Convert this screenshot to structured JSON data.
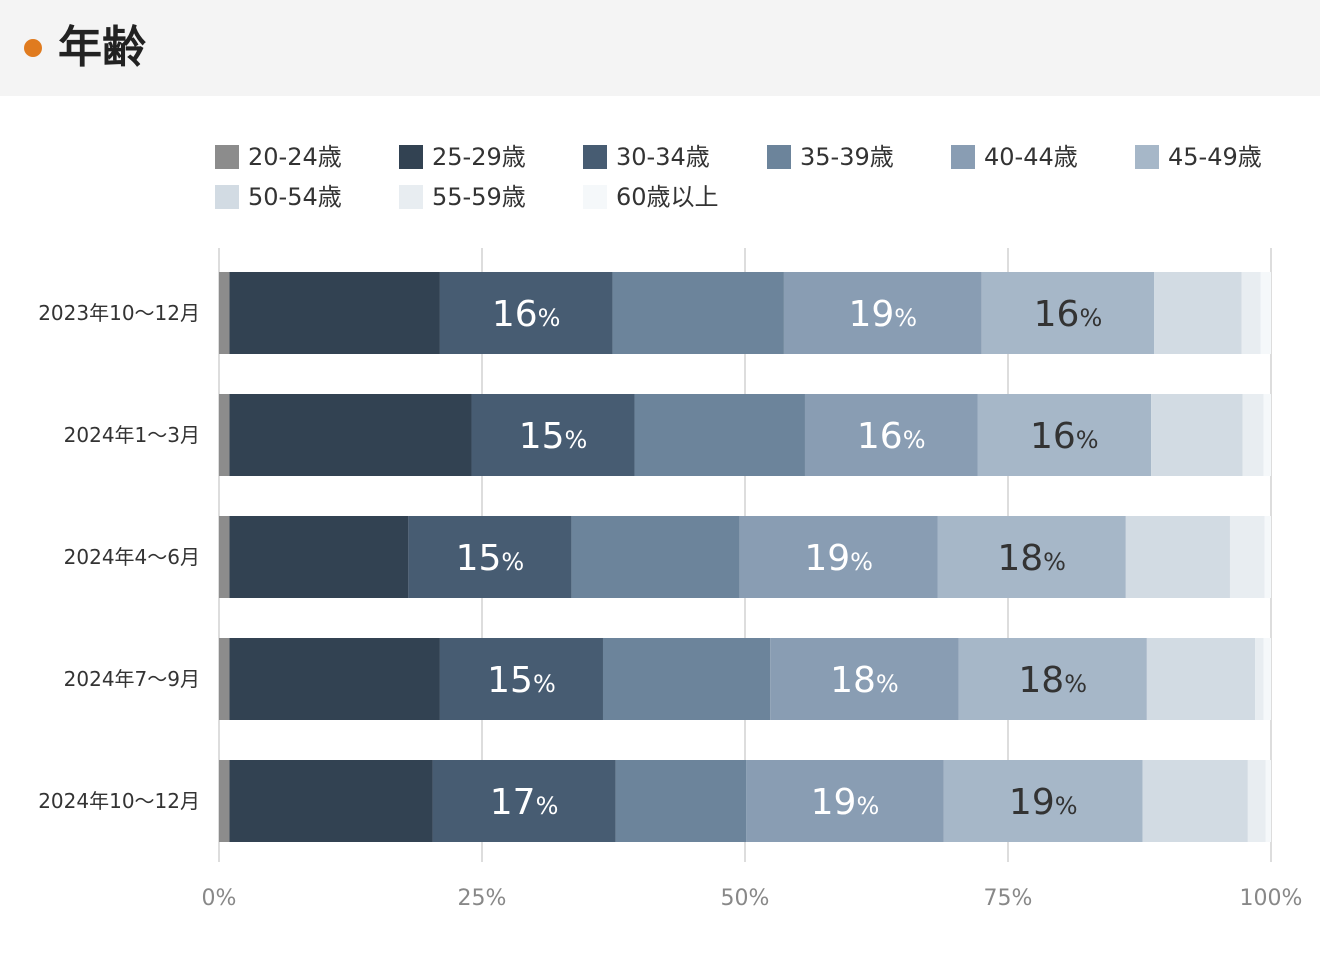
{
  "header": {
    "title": "年齢",
    "accent": "#e07b1f"
  },
  "chart_data": {
    "type": "bar",
    "orientation": "horizontal",
    "stacked": true,
    "xlim": [
      0,
      100
    ],
    "ticks": [
      "0%",
      "25%",
      "50%",
      "75%",
      "100%"
    ],
    "tick_values": [
      0,
      25,
      50,
      75,
      100
    ],
    "grid": true,
    "legend_position": "top",
    "categories": [
      "2023年10〜12月",
      "2024年1〜3月",
      "2024年4〜6月",
      "2024年7〜9月",
      "2024年10〜12月"
    ],
    "series": [
      {
        "name": "20-24歳",
        "color": "#8c8c8c",
        "values": [
          1,
          1,
          1,
          1,
          1
        ]
      },
      {
        "name": "25-29歳",
        "color": "#324252",
        "values": [
          20,
          23,
          17,
          20,
          19.3
        ]
      },
      {
        "name": "30-34歳",
        "color": "#475c72",
        "values": [
          16.4,
          15.5,
          15.5,
          15.5,
          17.4
        ]
      },
      {
        "name": "35-39歳",
        "color": "#6c849b",
        "values": [
          16.3,
          16.2,
          16,
          15.9,
          12.4
        ]
      },
      {
        "name": "40-44歳",
        "color": "#899db3",
        "values": [
          18.8,
          16.4,
          18.8,
          17.9,
          18.8
        ]
      },
      {
        "name": "45-49歳",
        "color": "#a6b7c8",
        "values": [
          16.4,
          16.5,
          17.9,
          17.9,
          18.9
        ]
      },
      {
        "name": "50-54歳",
        "color": "#d2dbe3",
        "values": [
          8.3,
          8.7,
          9.9,
          10.3,
          10
        ]
      },
      {
        "name": "55-59歳",
        "color": "#e8edf1",
        "values": [
          1.8,
          2.0,
          3.3,
          0.8,
          1.7
        ]
      },
      {
        "name": "60歳以上",
        "color": "#f5f8fa",
        "values": [
          1,
          0.7,
          0.6,
          0.7,
          0.5
        ]
      }
    ],
    "data_labels": [
      [
        null,
        null,
        "16",
        null,
        "19",
        "16",
        null,
        null,
        null
      ],
      [
        null,
        null,
        "15",
        null,
        "16",
        "16",
        null,
        null,
        null
      ],
      [
        null,
        null,
        "15",
        null,
        "19",
        "18",
        null,
        null,
        null
      ],
      [
        null,
        null,
        "15",
        null,
        "18",
        "18",
        null,
        null,
        null
      ],
      [
        null,
        null,
        "17",
        null,
        "19",
        "19",
        null,
        null,
        null
      ]
    ],
    "label_unit": "%",
    "label_colors": [
      "#ffffff",
      "#ffffff",
      "#ffffff",
      "#ffffff",
      "#ffffff",
      "#333333",
      "#333333",
      "#333333",
      "#333333"
    ]
  }
}
